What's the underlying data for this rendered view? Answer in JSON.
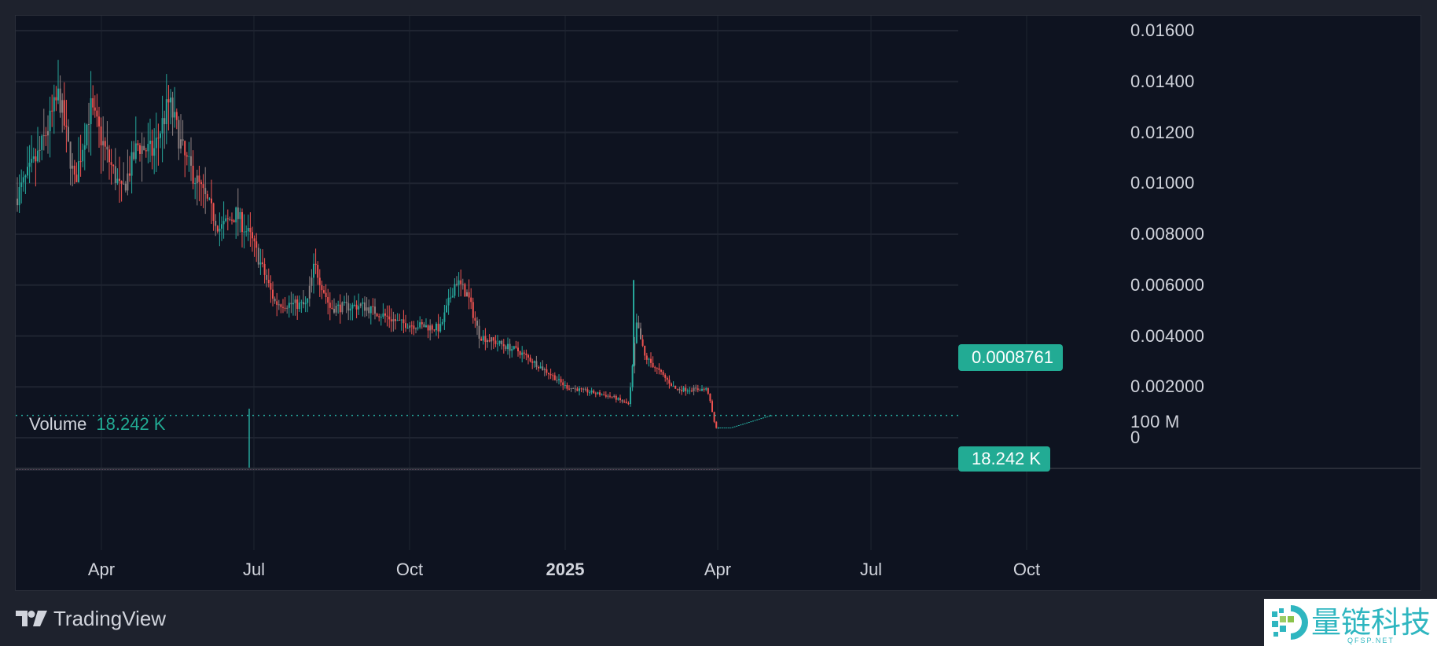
{
  "footer": {
    "brand": "TradingView",
    "watermark_text": "量链科技",
    "watermark_sub": "QFSP.NET"
  },
  "volume_pane": {
    "label": "Volume",
    "value": "18.242 K",
    "axis_label": "100 M",
    "badge": "18.242 K"
  },
  "price_axis": {
    "labels": [
      "0.01600",
      "0.01400",
      "0.01200",
      "0.01000",
      "0.008000",
      "0.006000",
      "0.004000",
      "0.002000",
      "0"
    ],
    "current_price_badge": "0.0008761"
  },
  "time_axis": {
    "labels": [
      {
        "text": "Apr",
        "bold": false
      },
      {
        "text": "Jul",
        "bold": false
      },
      {
        "text": "Oct",
        "bold": false
      },
      {
        "text": "2025",
        "bold": true
      },
      {
        "text": "Apr",
        "bold": false
      },
      {
        "text": "Jul",
        "bold": false
      },
      {
        "text": "Oct",
        "bold": false
      }
    ]
  },
  "colors": {
    "up": "#26a69a",
    "down": "#ef5350",
    "neutral": "#8c7f7f",
    "grid": "#1f2431",
    "background": "#0e1320",
    "frame": "#1e222d",
    "badge": "#22ab94"
  },
  "chart_data": {
    "type": "candlestick",
    "title": "",
    "xlabel": "",
    "ylabel": "",
    "ylim": [
      0,
      0.0165
    ],
    "grid": true,
    "legend_position": "none",
    "current_price": 0.0008761,
    "x_ticks": [
      "Apr",
      "Jul",
      "Oct",
      "2025",
      "Apr",
      "Jul",
      "Oct"
    ],
    "y_ticks": [
      0.016,
      0.014,
      0.012,
      0.01,
      0.008,
      0.006,
      0.004,
      0.002,
      0
    ],
    "price_path": [
      {
        "t": "2024-02",
        "close": 0.0094
      },
      {
        "t": "2024-02-mid",
        "close": 0.0112
      },
      {
        "t": "2024-03-early",
        "close": 0.0135
      },
      {
        "t": "2024-03-mid",
        "close": 0.01
      },
      {
        "t": "2024-04-early",
        "close": 0.013
      },
      {
        "t": "2024-04-mid",
        "close": 0.0112
      },
      {
        "t": "2024-04-late",
        "close": 0.0096
      },
      {
        "t": "2024-05-early",
        "close": 0.0115
      },
      {
        "t": "2024-05-late",
        "close": 0.0112
      },
      {
        "t": "2024-06-early",
        "close": 0.0132
      },
      {
        "t": "2024-06-mid",
        "close": 0.011
      },
      {
        "t": "2024-06-late",
        "close": 0.0098
      },
      {
        "t": "2024-07-early",
        "close": 0.0082
      },
      {
        "t": "2024-07-mid",
        "close": 0.0088
      },
      {
        "t": "2024-07-late",
        "close": 0.0078
      },
      {
        "t": "2024-08-early",
        "close": 0.0053
      },
      {
        "t": "2024-08-late",
        "close": 0.0052
      },
      {
        "t": "2024-09-early",
        "close": 0.0068
      },
      {
        "t": "2024-09-mid",
        "close": 0.0051
      },
      {
        "t": "2024-10-early",
        "close": 0.0052
      },
      {
        "t": "2024-10-late",
        "close": 0.0045
      },
      {
        "t": "2024-11-mid",
        "close": 0.0043
      },
      {
        "t": "2024-11-late",
        "close": 0.0062
      },
      {
        "t": "2024-12-early",
        "close": 0.0056
      },
      {
        "t": "2024-12-late",
        "close": 0.004
      },
      {
        "t": "2025-01-mid",
        "close": 0.0034
      },
      {
        "t": "2025-02-early",
        "close": 0.0025
      },
      {
        "t": "2025-02-late",
        "close": 0.002
      },
      {
        "t": "2025-03-late",
        "close": 0.0016
      },
      {
        "t": "2025-04-early",
        "close": 0.0013
      },
      {
        "t": "2025-04-mid",
        "close": 0.0045
      },
      {
        "t": "2025-04-late",
        "close": 0.0032
      },
      {
        "t": "2025-05-mid",
        "close": 0.0019
      },
      {
        "t": "2025-06-early",
        "close": 0.0019
      },
      {
        "t": "2025-06-mid",
        "close": 0.0004
      },
      {
        "t": "2025-07-mid",
        "close": 0.0004
      },
      {
        "t": "2025-07-late",
        "close": 0.00088
      },
      {
        "t": "2025-11",
        "close": 0.0008761
      }
    ],
    "volume": {
      "last": "18.242 K",
      "axis_max_label": "100 M",
      "spike_near": "2024-07-late"
    }
  }
}
